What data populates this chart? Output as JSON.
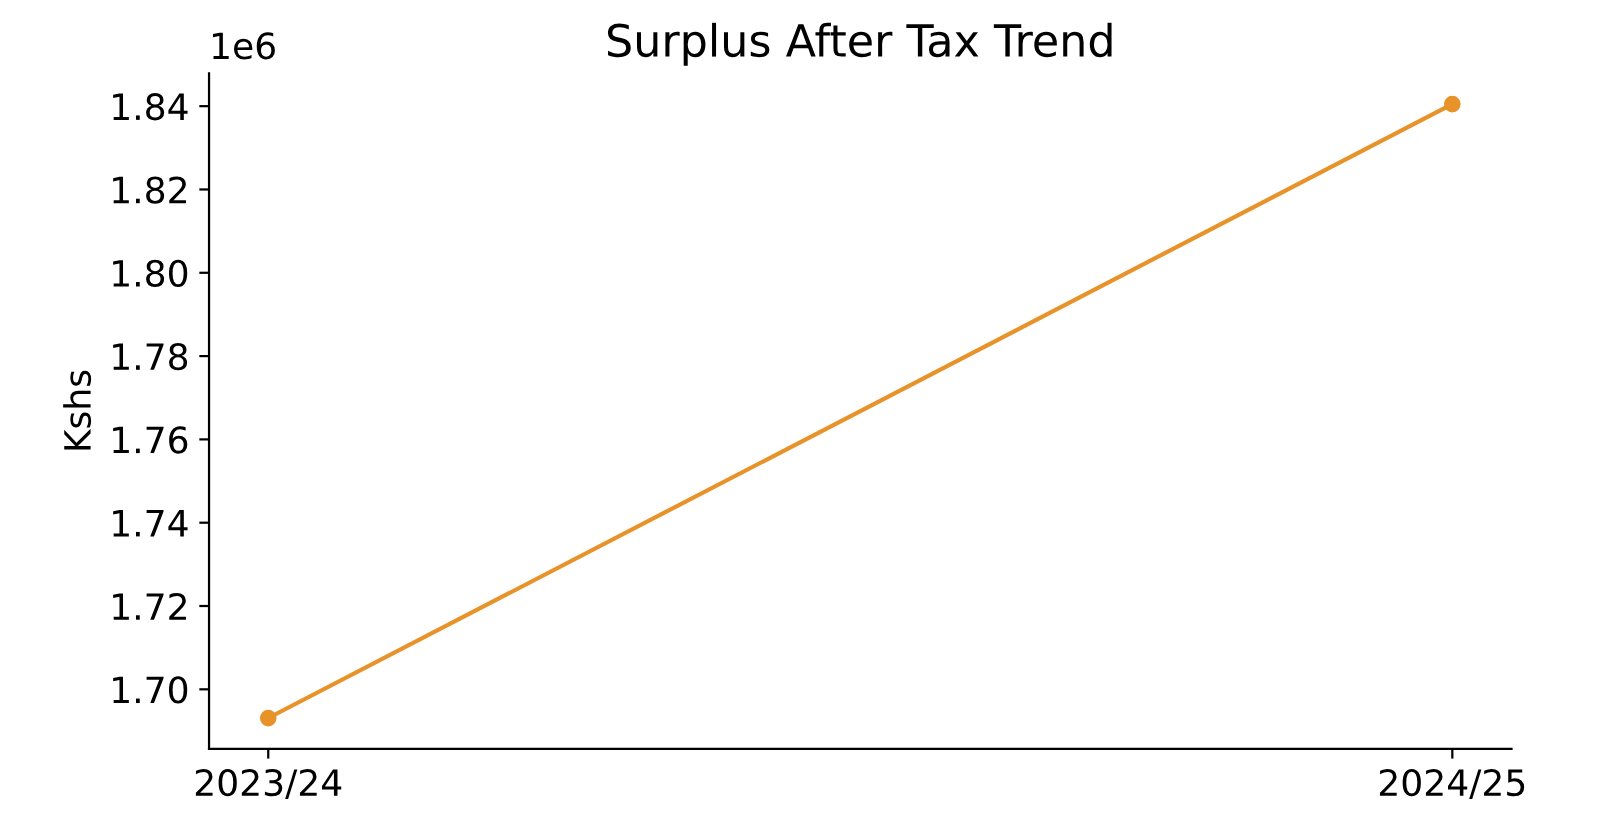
{
  "chart_data": {
    "type": "line",
    "title": "Surplus After Tax Trend",
    "ylabel": "Kshs",
    "categories": [
      "2023/24",
      "2024/25"
    ],
    "series": [
      {
        "color": "#e8922a",
        "values": [
          1.6931,
          1.8405
        ]
      }
    ],
    "ylim": [
      1.6857,
      1.8479
    ],
    "yticks": [
      {
        "value": 1.7,
        "label": "1.70"
      },
      1.72,
      1.74,
      1.76,
      1.78,
      {
        "value": 1.8,
        "label": "1.80"
      },
      1.82,
      1.84
    ],
    "annotations": [
      "1e6"
    ],
    "marker": "circle",
    "line_style": "solid",
    "grid": false,
    "legend": false
  }
}
